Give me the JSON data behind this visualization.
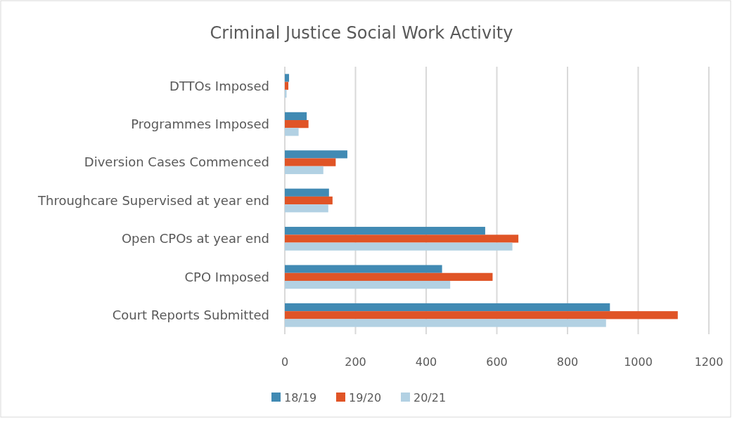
{
  "chart_data": {
    "type": "bar",
    "orientation": "horizontal",
    "title": "Criminal Justice Social Work Activity",
    "categories": [
      "DTTOs Imposed",
      "Programmes Imposed",
      "Diversion Cases Commenced",
      "Throughcare Supervised at year end",
      "Open CPOs at year end",
      "CPO Imposed",
      "Court Reports Submitted"
    ],
    "series": [
      {
        "name": "18/19",
        "color": "#418ab3",
        "values": [
          12,
          62,
          177,
          125,
          567,
          445,
          920
        ]
      },
      {
        "name": "19/20",
        "color": "#e05426",
        "values": [
          10,
          67,
          144,
          135,
          661,
          588,
          1112
        ]
      },
      {
        "name": "20/21",
        "color": "#b2d1e3",
        "values": [
          5,
          39,
          109,
          123,
          644,
          468,
          909
        ]
      }
    ],
    "xlim": [
      0,
      1200
    ],
    "xticks": [
      0,
      200,
      400,
      600,
      800,
      1000,
      1200
    ],
    "grid": "x",
    "legend": "bottom"
  }
}
